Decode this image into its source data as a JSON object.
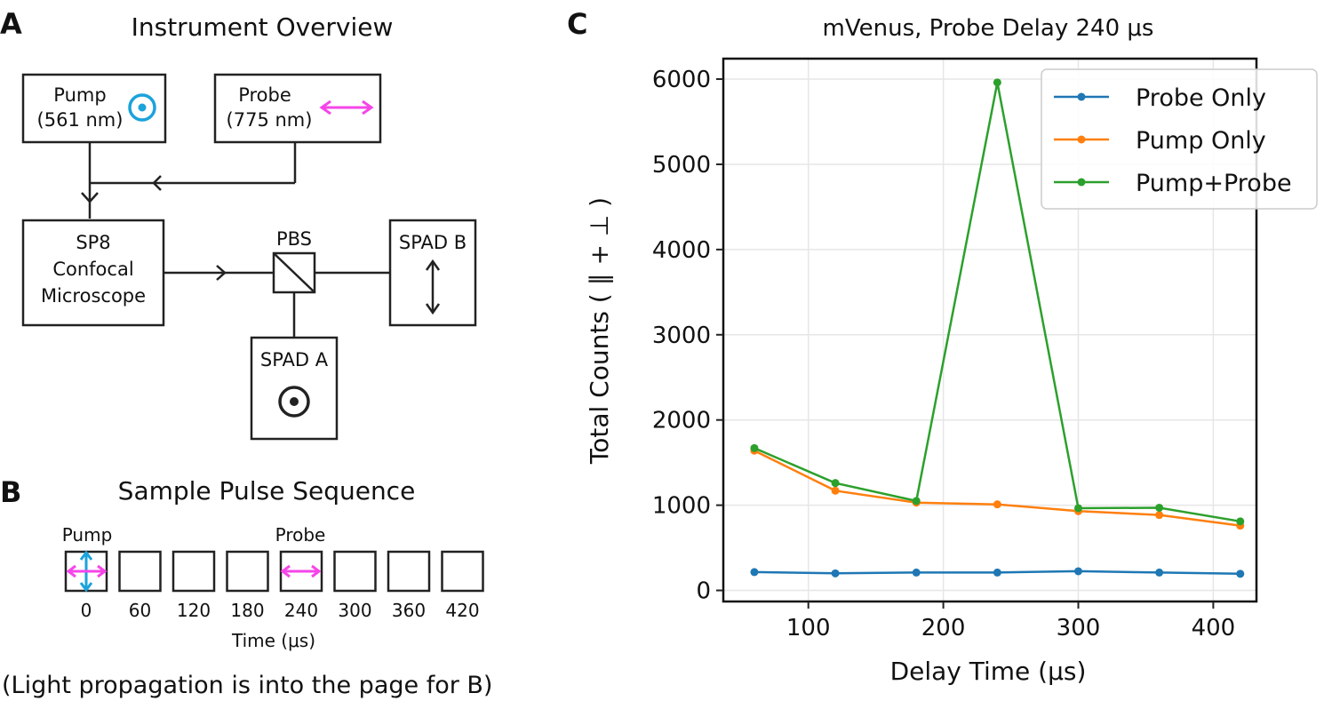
{
  "panel_a": {
    "letter": "A",
    "title": "Instrument Overview",
    "pump": {
      "line1": "Pump",
      "line2": "(561 nm)"
    },
    "probe": {
      "line1": "Probe",
      "line2": "(775 nm)"
    },
    "microscope": {
      "line1": "SP8",
      "line2": "Confocal",
      "line3": "Microscope"
    },
    "pbs": "PBS",
    "spad_a": "SPAD A",
    "spad_b": "SPAD B",
    "colors": {
      "pump_pol": "#1ba3dc",
      "probe_pol": "#f545e8"
    }
  },
  "panel_b": {
    "letter": "B",
    "title": "Sample Pulse Sequence",
    "pump_label": "Pump",
    "probe_label": "Probe",
    "times": [
      "0",
      "60",
      "120",
      "180",
      "240",
      "300",
      "360",
      "420"
    ],
    "xlabel": "Time (μs)",
    "note": "(Light propagation is into the page for B)"
  },
  "panel_c": {
    "letter": "C"
  },
  "chart_data": {
    "type": "line",
    "title": "mVenus, Probe Delay 240 μs",
    "xlabel": "Delay Time (μs)",
    "ylabel": "Total Counts ( ∥ + ⊥ )",
    "x": [
      60,
      120,
      180,
      240,
      300,
      360,
      420
    ],
    "xlim": [
      37,
      432
    ],
    "ylim": [
      -130,
      6240
    ],
    "xticks": [
      100,
      200,
      300,
      400
    ],
    "yticks": [
      0,
      1000,
      2000,
      3000,
      4000,
      5000,
      6000
    ],
    "grid": true,
    "legend_position": "top-right",
    "series": [
      {
        "name": "Probe Only",
        "color": "#1f77b4",
        "values": [
          215,
          200,
          210,
          210,
          225,
          210,
          195
        ]
      },
      {
        "name": "Pump Only",
        "color": "#ff7f0e",
        "values": [
          1640,
          1170,
          1030,
          1010,
          930,
          885,
          760
        ]
      },
      {
        "name": "Pump+Probe",
        "color": "#2ca02c",
        "values": [
          1670,
          1260,
          1050,
          5960,
          965,
          970,
          810
        ]
      }
    ]
  }
}
